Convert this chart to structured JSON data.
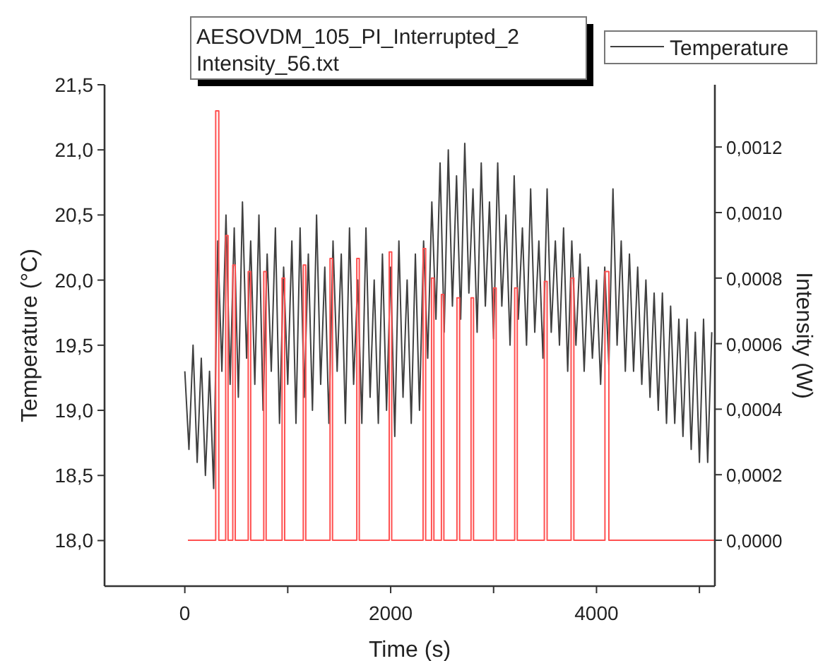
{
  "chart_data": {
    "type": "line",
    "title": "AESOVDM_105_PI_Interrupted_2\nIntensity_56.txt",
    "xlabel": "Time (s)",
    "ylabel": "Temperature (°C)",
    "y2label": "Intensity (W)",
    "xlim": [
      -780,
      5150
    ],
    "xticks": [
      0,
      {
        "value": 1000,
        "label": null
      },
      2000,
      {
        "value": 3000,
        "label": null
      },
      4000,
      {
        "value": 5000,
        "label": null
      }
    ],
    "ylim": [
      17.65,
      21.5
    ],
    "yticks": [
      {
        "value": 18,
        "label": "18,0"
      },
      {
        "value": 18.5,
        "label": "18,5"
      },
      {
        "value": 19,
        "label": "19,0"
      },
      {
        "value": 19.5,
        "label": "19,5"
      },
      {
        "value": 20,
        "label": "20,0"
      },
      {
        "value": 20.5,
        "label": "20,5"
      },
      {
        "value": 21,
        "label": "21,0"
      },
      {
        "value": 21.5,
        "label": "21,5"
      }
    ],
    "y2lim": [
      -0.00014,
      0.00139
    ],
    "y2ticks": [
      {
        "value": 0,
        "label": "0,0000"
      },
      {
        "value": 0.0002,
        "label": "0,0002"
      },
      {
        "value": 0.0004,
        "label": "0,0004"
      },
      {
        "value": 0.0006,
        "label": "0,0006"
      },
      {
        "value": 0.0008,
        "label": "0,0008"
      },
      {
        "value": 0.001,
        "label": "0,0010"
      },
      {
        "value": 0.0012,
        "label": "0,0012"
      }
    ],
    "legend": "top right",
    "grid": false,
    "series": [
      {
        "name": "Temperature",
        "color": "#404040",
        "x": [
          0,
          40,
          80,
          120,
          160,
          200,
          240,
          280,
          320,
          360,
          400,
          440,
          480,
          520,
          560,
          600,
          640,
          680,
          720,
          760,
          800,
          840,
          880,
          920,
          960,
          1000,
          1040,
          1080,
          1120,
          1160,
          1200,
          1240,
          1280,
          1320,
          1360,
          1400,
          1440,
          1480,
          1520,
          1560,
          1600,
          1640,
          1680,
          1720,
          1760,
          1800,
          1840,
          1880,
          1920,
          1960,
          2000,
          2040,
          2080,
          2120,
          2160,
          2200,
          2240,
          2280,
          2320,
          2360,
          2400,
          2440,
          2480,
          2520,
          2560,
          2600,
          2640,
          2680,
          2720,
          2760,
          2800,
          2840,
          2880,
          2920,
          2960,
          3000,
          3040,
          3080,
          3120,
          3160,
          3200,
          3240,
          3280,
          3320,
          3360,
          3400,
          3440,
          3480,
          3520,
          3560,
          3600,
          3640,
          3680,
          3720,
          3760,
          3800,
          3840,
          3880,
          3920,
          3960,
          4000,
          4040,
          4080,
          4120,
          4160,
          4200,
          4240,
          4280,
          4320,
          4360,
          4400,
          4440,
          4480,
          4520,
          4560,
          4600,
          4640,
          4680,
          4720,
          4760,
          4800,
          4840,
          4880,
          4920,
          4960,
          5000,
          5040,
          5080,
          5120
        ],
        "values": [
          19.3,
          18.7,
          19.5,
          18.6,
          19.4,
          18.5,
          19.3,
          18.4,
          20.3,
          19.3,
          20.5,
          19.2,
          20.4,
          19.1,
          20.6,
          19.4,
          20.3,
          19.2,
          20.5,
          19.0,
          20.2,
          19.3,
          20.4,
          18.9,
          20.1,
          19.2,
          20.3,
          18.9,
          20.4,
          19.1,
          20.2,
          19.0,
          20.5,
          19.2,
          20.1,
          18.9,
          20.3,
          19.3,
          20.2,
          18.9,
          20.4,
          19.2,
          20.0,
          18.9,
          20.4,
          19.1,
          20.0,
          18.9,
          20.2,
          19.0,
          20.1,
          18.8,
          20.3,
          19.1,
          20.0,
          18.9,
          20.2,
          19.0,
          20.3,
          19.4,
          20.6,
          19.7,
          20.9,
          19.6,
          21.0,
          19.8,
          20.8,
          19.7,
          21.05,
          19.9,
          20.7,
          19.6,
          20.9,
          19.8,
          20.6,
          19.55,
          20.9,
          19.8,
          20.5,
          19.5,
          20.8,
          19.7,
          20.4,
          19.5,
          20.7,
          19.6,
          20.3,
          19.4,
          20.7,
          19.6,
          20.3,
          19.5,
          20.4,
          19.3,
          20.3,
          19.5,
          20.2,
          19.3,
          20.1,
          19.4,
          20.0,
          19.2,
          20.1,
          19.35,
          20.7,
          19.5,
          20.3,
          19.3,
          20.2,
          19.3,
          20.1,
          19.2,
          20.0,
          19.1,
          19.9,
          19.0,
          19.9,
          18.9,
          19.8,
          18.9,
          19.7,
          18.8,
          19.7,
          18.7,
          19.6,
          18.6,
          19.7,
          18.6,
          19.6
        ]
      },
      {
        "color": "#ff5050",
        "axis": "y2",
        "x": [
          30,
          300,
          300,
          330,
          330,
          397,
          397,
          420,
          420,
          466,
          466,
          490,
          490,
          616,
          616,
          640,
          640,
          767,
          767,
          790,
          790,
          945,
          945,
          970,
          970,
          1151,
          1151,
          1175,
          1175,
          1411,
          1411,
          1435,
          1435,
          1671,
          1671,
          1695,
          1695,
          1986,
          1986,
          2010,
          2010,
          2315,
          2315,
          2340,
          2340,
          2397,
          2397,
          2420,
          2420,
          2493,
          2493,
          2517,
          2517,
          2644,
          2644,
          2670,
          2670,
          2781,
          2781,
          2805,
          2805,
          3000,
          3000,
          3025,
          3025,
          3205,
          3205,
          3230,
          3230,
          3493,
          3493,
          3520,
          3520,
          3753,
          3753,
          3780,
          3780,
          4082,
          4082,
          4120,
          4120,
          5150
        ],
        "values": [
          0,
          0,
          0.00131,
          0.00131,
          0,
          0,
          0.00093,
          0.00093,
          0,
          0,
          0.00084,
          0.00084,
          0,
          0,
          0.00082,
          0.00082,
          0,
          0,
          0.00082,
          0.00082,
          0,
          0,
          0.0008,
          0.0008,
          0,
          0,
          0.00084,
          0.00084,
          0,
          0,
          0.00086,
          0.00086,
          0,
          0,
          0.00086,
          0.00086,
          0,
          0,
          0.00088,
          0.00088,
          0,
          0,
          0.00089,
          0.00089,
          0,
          0,
          0.0008,
          0.0008,
          0,
          0,
          0.00075,
          0.00075,
          0,
          0,
          0.00074,
          0.00074,
          0,
          0,
          0.00074,
          0.00074,
          0,
          0,
          0.00077,
          0.00077,
          0,
          0,
          0.00077,
          0.00077,
          0,
          0,
          0.00079,
          0.00079,
          0,
          0,
          0.0008,
          0.0008,
          0,
          0,
          0.00082,
          0.00082,
          0,
          0
        ]
      }
    ]
  }
}
